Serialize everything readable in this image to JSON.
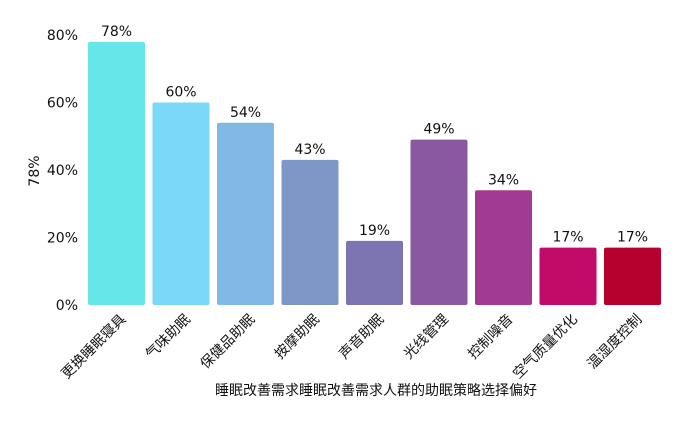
{
  "chart_data": {
    "type": "bar",
    "title": "",
    "xlabel": "睡眠改善需求睡眠改善需求人群的助眠策略选择偏好",
    "ylabel": "78%",
    "ylim": [
      0,
      80
    ],
    "yticks": [
      0,
      20,
      40,
      60,
      80
    ],
    "ytick_labels": [
      "0%",
      "20%",
      "40%",
      "60%",
      "80%"
    ],
    "grid": false,
    "categories": [
      "更换睡眠寝具",
      "气味助眠",
      "保健品助眠",
      "按摩助眠",
      "声音助眠",
      "光线管理",
      "控制噪音",
      "空气质量优化",
      "温湿度控制"
    ],
    "values": [
      78,
      60,
      54,
      43,
      19,
      49,
      34,
      17,
      17
    ],
    "value_labels": [
      "78%",
      "60%",
      "54%",
      "43%",
      "19%",
      "49%",
      "34%",
      "17%",
      "17%"
    ],
    "colors": [
      "#67E6EA",
      "#79D9F7",
      "#82B9E4",
      "#7F97C6",
      "#7D74B2",
      "#8A57A1",
      "#A13A92",
      "#C20A68",
      "#B6002E"
    ]
  }
}
